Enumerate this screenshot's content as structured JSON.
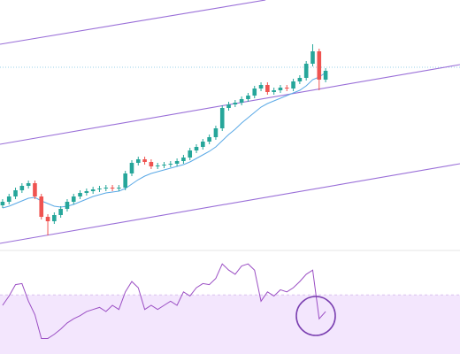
{
  "chart_data": [
    {
      "type": "candlestick",
      "xlim": [
        -0.4,
        70.8
      ],
      "ylim": [
        0,
        280
      ],
      "open": [
        48,
        52,
        58,
        65,
        70,
        73,
        58,
        35,
        30,
        37,
        44,
        52,
        58,
        62,
        64,
        66,
        67,
        68,
        67,
        68,
        84,
        96,
        100,
        97,
        92,
        93,
        94,
        95,
        98,
        102,
        110,
        114,
        120,
        125,
        135,
        158,
        162,
        164,
        168,
        172,
        180,
        184,
        176,
        178,
        181,
        180,
        188,
        192,
        208,
        222,
        190
      ],
      "high": [
        55,
        61,
        68,
        73,
        76,
        76,
        61,
        38,
        40,
        47,
        55,
        61,
        65,
        67,
        69,
        70,
        71,
        71,
        71,
        87,
        99,
        103,
        103,
        100,
        96,
        97,
        98,
        101,
        105,
        113,
        117,
        123,
        128,
        138,
        161,
        165,
        167,
        171,
        175,
        183,
        187,
        187,
        181,
        184,
        184,
        191,
        195,
        211,
        230,
        225,
        203
      ],
      "low": [
        45,
        49,
        55,
        62,
        67,
        55,
        32,
        14,
        27,
        34,
        41,
        49,
        55,
        59,
        61,
        63,
        64,
        64,
        64,
        65,
        81,
        93,
        94,
        89,
        89,
        90,
        91,
        92,
        95,
        99,
        107,
        111,
        117,
        122,
        132,
        155,
        159,
        161,
        165,
        169,
        177,
        173,
        173,
        175,
        177,
        177,
        185,
        189,
        205,
        178,
        187
      ],
      "close": [
        52,
        58,
        65,
        70,
        73,
        58,
        35,
        30,
        37,
        44,
        52,
        58,
        62,
        64,
        66,
        67,
        68,
        67,
        68,
        84,
        96,
        100,
        97,
        92,
        93,
        94,
        95,
        98,
        102,
        110,
        114,
        120,
        125,
        135,
        158,
        162,
        164,
        168,
        172,
        180,
        184,
        176,
        178,
        181,
        180,
        188,
        192,
        208,
        222,
        190,
        200
      ],
      "up_color": "#26a69a",
      "down_color": "#ef5350",
      "ma": {
        "color": "#5aa9e6",
        "values": [
          45,
          47,
          50,
          53,
          56,
          57,
          53,
          50,
          47,
          46,
          47,
          49,
          52,
          55,
          58,
          60,
          62,
          63,
          64,
          67,
          72,
          77,
          81,
          84,
          86,
          88,
          90,
          92,
          94,
          97,
          101,
          105,
          109,
          114,
          121,
          128,
          134,
          141,
          147,
          153,
          159,
          163,
          166,
          169,
          172,
          175,
          178,
          183,
          190,
          193,
          198
        ]
      },
      "channels": [
        {
          "x": [
            -0.4,
            40.7
          ],
          "values": [
            230,
            280
          ]
        },
        {
          "x": [
            -0.4,
            70.8
          ],
          "values": [
            117,
            207
          ]
        },
        {
          "x": [
            -0.4,
            70.8
          ],
          "values": [
            5,
            95
          ]
        }
      ],
      "channel_color": "#9a6fd8",
      "price_line": 204,
      "price_line_color": "#9ad0e8"
    },
    {
      "type": "line",
      "xlim": [
        -0.4,
        70.8
      ],
      "ylim": [
        0,
        100
      ],
      "values": [
        47,
        56,
        67,
        68,
        51,
        38,
        15,
        15,
        19,
        24,
        30,
        34,
        37,
        41,
        43,
        45,
        41,
        47,
        43,
        60,
        70,
        64,
        43,
        47,
        43,
        47,
        51,
        47,
        60,
        56,
        64,
        68,
        67,
        73,
        87,
        81,
        77,
        85,
        87,
        81,
        51,
        60,
        56,
        62,
        60,
        64,
        70,
        77,
        81,
        34,
        41
      ],
      "color": "#9b4fc4",
      "band": [
        0,
        57
      ],
      "band_color": "#f3e6fd"
    }
  ]
}
